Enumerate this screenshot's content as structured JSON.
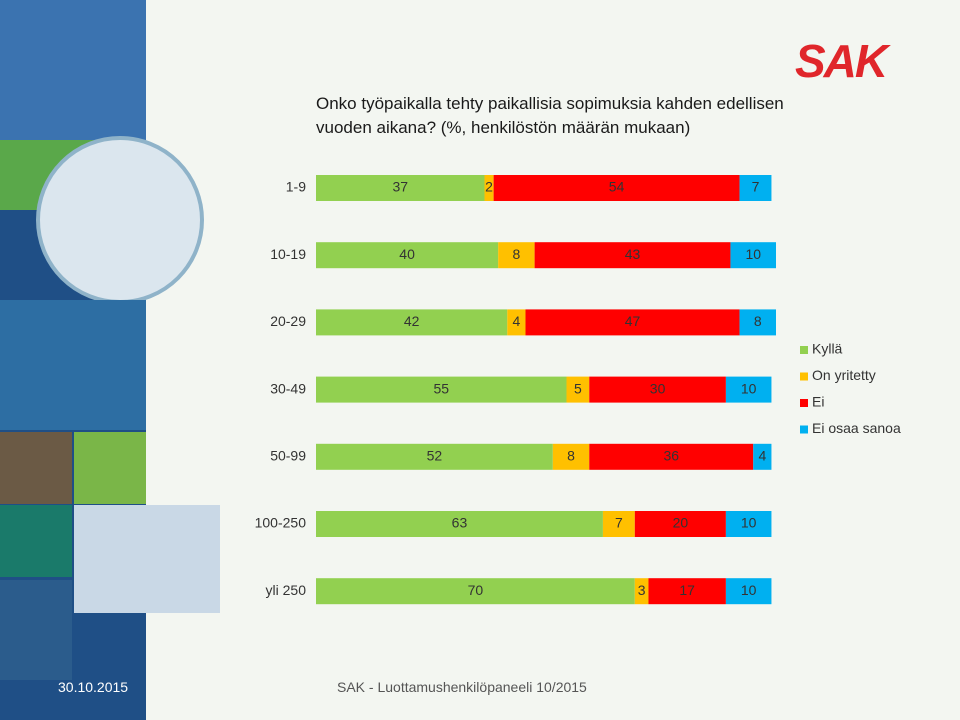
{
  "chart_data": {
    "type": "bar",
    "stacked": true,
    "orientation": "horizontal",
    "title": "Onko työpaikalla tehty paikallisia sopimuksia kahden edellisen vuoden aikana? (%, henkilöstön määrän mukaan)",
    "categories": [
      "1-9",
      "10-19",
      "20-29",
      "30-49",
      "50-99",
      "100-250",
      "yli 250"
    ],
    "series": [
      {
        "name": "Kyllä",
        "color": "#92d050",
        "values": [
          37,
          40,
          42,
          55,
          52,
          63,
          70
        ]
      },
      {
        "name": "On yritetty",
        "color": "#ffc000",
        "values": [
          2,
          8,
          4,
          5,
          8,
          7,
          3
        ]
      },
      {
        "name": "Ei",
        "color": "#ff0000",
        "values": [
          54,
          43,
          47,
          30,
          36,
          20,
          17
        ]
      },
      {
        "name": "Ei osaa sanoa",
        "color": "#00b0f0",
        "values": [
          7,
          10,
          8,
          10,
          4,
          10,
          10
        ]
      }
    ],
    "legend": "right"
  },
  "logo": "SAK",
  "footer": {
    "date": "30.10.2015",
    "text": "SAK - Luottamushenkilöpaneeli 10/2015"
  }
}
